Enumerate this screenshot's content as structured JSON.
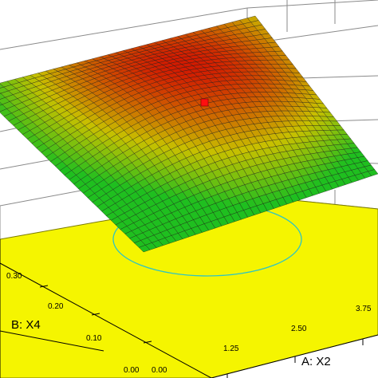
{
  "chart_data": {
    "type": "surface3d",
    "x_axis": {
      "label": "A: X2",
      "ticks": [
        "1.25",
        "2.50",
        "3.75"
      ],
      "origin_label": "0.00"
    },
    "y_axis": {
      "label": "B: X4",
      "ticks": [
        "0.10",
        "0.20",
        "0.30"
      ],
      "origin_label": "0.00"
    },
    "floor_color": "#f5f500",
    "contour_color": "#2ec4c4",
    "surface_colors": {
      "low": "#1fbf1f",
      "mid": "#c8c000",
      "high": "#d21a00"
    },
    "optimum_marker_color": "#ff1010",
    "grid": true
  }
}
